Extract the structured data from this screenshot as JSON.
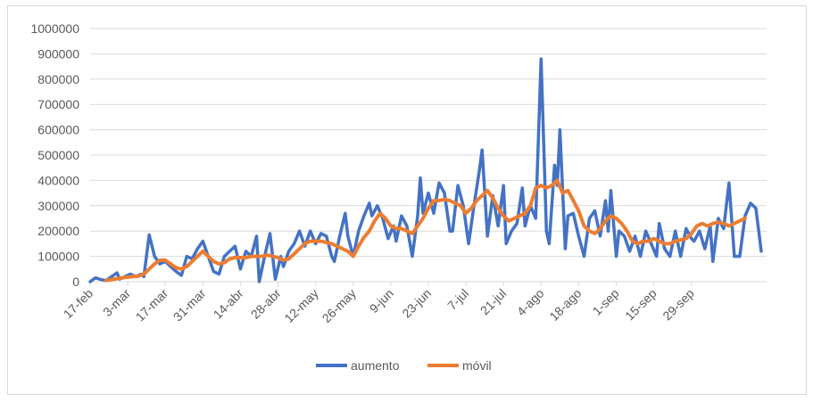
{
  "colors": {
    "aumento": "#4472C4",
    "movil": "#ED7D31",
    "grid": "#d9d9d9",
    "text": "#595959"
  },
  "chart_data": {
    "type": "line",
    "title": "",
    "xlabel": "",
    "ylabel": "",
    "ylim": [
      0,
      1000000
    ],
    "y_ticks": [
      "0",
      "100000",
      "200000",
      "300000",
      "400000",
      "500000",
      "600000",
      "700000",
      "800000",
      "900000",
      "1000000"
    ],
    "x_tick_labels": [
      "17-feb",
      "3-mar",
      "17-mar",
      "31-mar",
      "14-abr",
      "28-abr",
      "12-may",
      "26-may",
      "9-jun",
      "23-jun",
      "7-jul",
      "21-jul",
      "4-ago",
      "18-ago",
      "1-sep",
      "15-sep",
      "29-sep"
    ],
    "x_tick_days": [
      0,
      14,
      28,
      42,
      56,
      70,
      84,
      98,
      112,
      126,
      140,
      154,
      168,
      182,
      196,
      210,
      224
    ],
    "x_start": "17-feb",
    "grid": true,
    "legend_position": "bottom",
    "series": [
      {
        "name": "aumento",
        "points": [
          [
            0,
            0
          ],
          [
            2,
            15000
          ],
          [
            4,
            8000
          ],
          [
            6,
            5000
          ],
          [
            8,
            20000
          ],
          [
            10,
            35000
          ],
          [
            11,
            10000
          ],
          [
            13,
            20000
          ],
          [
            15,
            30000
          ],
          [
            17,
            20000
          ],
          [
            19,
            30000
          ],
          [
            20,
            20000
          ],
          [
            22,
            185000
          ],
          [
            24,
            100000
          ],
          [
            26,
            70000
          ],
          [
            28,
            80000
          ],
          [
            30,
            60000
          ],
          [
            32,
            40000
          ],
          [
            34,
            25000
          ],
          [
            36,
            100000
          ],
          [
            38,
            90000
          ],
          [
            40,
            130000
          ],
          [
            42,
            160000
          ],
          [
            44,
            100000
          ],
          [
            46,
            40000
          ],
          [
            48,
            30000
          ],
          [
            50,
            100000
          ],
          [
            52,
            120000
          ],
          [
            54,
            140000
          ],
          [
            56,
            50000
          ],
          [
            58,
            120000
          ],
          [
            60,
            100000
          ],
          [
            62,
            180000
          ],
          [
            63,
            0
          ],
          [
            65,
            100000
          ],
          [
            67,
            190000
          ],
          [
            69,
            10000
          ],
          [
            71,
            100000
          ],
          [
            72,
            60000
          ],
          [
            74,
            120000
          ],
          [
            76,
            150000
          ],
          [
            78,
            200000
          ],
          [
            80,
            140000
          ],
          [
            82,
            200000
          ],
          [
            84,
            150000
          ],
          [
            86,
            190000
          ],
          [
            88,
            180000
          ],
          [
            90,
            100000
          ],
          [
            91,
            80000
          ],
          [
            93,
            180000
          ],
          [
            95,
            270000
          ],
          [
            96,
            180000
          ],
          [
            98,
            100000
          ],
          [
            100,
            200000
          ],
          [
            102,
            260000
          ],
          [
            104,
            310000
          ],
          [
            105,
            260000
          ],
          [
            107,
            300000
          ],
          [
            109,
            250000
          ],
          [
            111,
            170000
          ],
          [
            113,
            220000
          ],
          [
            114,
            160000
          ],
          [
            116,
            260000
          ],
          [
            118,
            220000
          ],
          [
            120,
            100000
          ],
          [
            122,
            260000
          ],
          [
            123,
            410000
          ],
          [
            124,
            270000
          ],
          [
            126,
            350000
          ],
          [
            128,
            270000
          ],
          [
            130,
            390000
          ],
          [
            132,
            350000
          ],
          [
            134,
            200000
          ],
          [
            135,
            200000
          ],
          [
            137,
            380000
          ],
          [
            139,
            300000
          ],
          [
            141,
            150000
          ],
          [
            143,
            300000
          ],
          [
            145,
            440000
          ],
          [
            146,
            520000
          ],
          [
            148,
            180000
          ],
          [
            150,
            340000
          ],
          [
            152,
            220000
          ],
          [
            154,
            380000
          ],
          [
            155,
            150000
          ],
          [
            157,
            200000
          ],
          [
            159,
            230000
          ],
          [
            161,
            370000
          ],
          [
            162,
            220000
          ],
          [
            164,
            300000
          ],
          [
            166,
            250000
          ],
          [
            168,
            880000
          ],
          [
            170,
            200000
          ],
          [
            171,
            150000
          ],
          [
            173,
            460000
          ],
          [
            174,
            380000
          ],
          [
            175,
            600000
          ],
          [
            177,
            130000
          ],
          [
            178,
            260000
          ],
          [
            180,
            270000
          ],
          [
            182,
            180000
          ],
          [
            184,
            100000
          ],
          [
            186,
            250000
          ],
          [
            188,
            280000
          ],
          [
            190,
            180000
          ],
          [
            192,
            320000
          ],
          [
            193,
            200000
          ],
          [
            194,
            360000
          ],
          [
            196,
            100000
          ],
          [
            197,
            200000
          ],
          [
            199,
            180000
          ],
          [
            201,
            120000
          ],
          [
            203,
            180000
          ],
          [
            205,
            100000
          ],
          [
            207,
            200000
          ],
          [
            209,
            150000
          ],
          [
            211,
            100000
          ],
          [
            212,
            230000
          ],
          [
            214,
            130000
          ],
          [
            216,
            100000
          ],
          [
            218,
            200000
          ],
          [
            220,
            100000
          ],
          [
            222,
            210000
          ],
          [
            224,
            170000
          ],
          [
            225,
            160000
          ],
          [
            227,
            200000
          ],
          [
            229,
            130000
          ],
          [
            231,
            220000
          ],
          [
            232,
            80000
          ],
          [
            234,
            250000
          ],
          [
            236,
            210000
          ],
          [
            238,
            390000
          ],
          [
            240,
            100000
          ],
          [
            242,
            100000
          ],
          [
            244,
            260000
          ],
          [
            246,
            310000
          ],
          [
            248,
            290000
          ],
          [
            250,
            120000
          ]
        ]
      },
      {
        "name": "móvil",
        "points": [
          [
            6,
            5000
          ],
          [
            8,
            8000
          ],
          [
            10,
            12000
          ],
          [
            12,
            15000
          ],
          [
            14,
            18000
          ],
          [
            16,
            20000
          ],
          [
            18,
            22000
          ],
          [
            20,
            30000
          ],
          [
            22,
            50000
          ],
          [
            24,
            70000
          ],
          [
            26,
            85000
          ],
          [
            28,
            85000
          ],
          [
            30,
            70000
          ],
          [
            32,
            55000
          ],
          [
            34,
            50000
          ],
          [
            36,
            60000
          ],
          [
            38,
            80000
          ],
          [
            40,
            100000
          ],
          [
            42,
            120000
          ],
          [
            44,
            100000
          ],
          [
            46,
            80000
          ],
          [
            48,
            70000
          ],
          [
            50,
            75000
          ],
          [
            52,
            90000
          ],
          [
            54,
            95000
          ],
          [
            56,
            95000
          ],
          [
            58,
            95000
          ],
          [
            60,
            100000
          ],
          [
            62,
            100000
          ],
          [
            64,
            100000
          ],
          [
            66,
            105000
          ],
          [
            68,
            100000
          ],
          [
            70,
            95000
          ],
          [
            72,
            85000
          ],
          [
            74,
            90000
          ],
          [
            76,
            110000
          ],
          [
            78,
            130000
          ],
          [
            80,
            150000
          ],
          [
            82,
            160000
          ],
          [
            84,
            160000
          ],
          [
            86,
            160000
          ],
          [
            88,
            155000
          ],
          [
            90,
            150000
          ],
          [
            92,
            140000
          ],
          [
            94,
            130000
          ],
          [
            96,
            120000
          ],
          [
            98,
            100000
          ],
          [
            100,
            140000
          ],
          [
            102,
            175000
          ],
          [
            104,
            200000
          ],
          [
            106,
            240000
          ],
          [
            108,
            270000
          ],
          [
            110,
            250000
          ],
          [
            112,
            220000
          ],
          [
            114,
            210000
          ],
          [
            116,
            210000
          ],
          [
            118,
            200000
          ],
          [
            120,
            190000
          ],
          [
            122,
            220000
          ],
          [
            124,
            250000
          ],
          [
            126,
            290000
          ],
          [
            128,
            320000
          ],
          [
            130,
            320000
          ],
          [
            132,
            325000
          ],
          [
            134,
            320000
          ],
          [
            136,
            310000
          ],
          [
            138,
            300000
          ],
          [
            140,
            270000
          ],
          [
            142,
            290000
          ],
          [
            144,
            320000
          ],
          [
            146,
            340000
          ],
          [
            148,
            360000
          ],
          [
            150,
            330000
          ],
          [
            152,
            290000
          ],
          [
            154,
            260000
          ],
          [
            156,
            240000
          ],
          [
            158,
            250000
          ],
          [
            160,
            260000
          ],
          [
            162,
            270000
          ],
          [
            164,
            300000
          ],
          [
            166,
            370000
          ],
          [
            168,
            380000
          ],
          [
            170,
            370000
          ],
          [
            172,
            380000
          ],
          [
            174,
            400000
          ],
          [
            176,
            350000
          ],
          [
            178,
            360000
          ],
          [
            180,
            320000
          ],
          [
            182,
            280000
          ],
          [
            184,
            220000
          ],
          [
            186,
            200000
          ],
          [
            188,
            190000
          ],
          [
            190,
            210000
          ],
          [
            192,
            240000
          ],
          [
            194,
            260000
          ],
          [
            196,
            250000
          ],
          [
            198,
            230000
          ],
          [
            200,
            200000
          ],
          [
            202,
            160000
          ],
          [
            204,
            150000
          ],
          [
            206,
            160000
          ],
          [
            208,
            160000
          ],
          [
            210,
            170000
          ],
          [
            212,
            160000
          ],
          [
            214,
            150000
          ],
          [
            216,
            150000
          ],
          [
            218,
            160000
          ],
          [
            220,
            165000
          ],
          [
            222,
            170000
          ],
          [
            224,
            190000
          ],
          [
            226,
            220000
          ],
          [
            228,
            230000
          ],
          [
            230,
            220000
          ],
          [
            232,
            230000
          ],
          [
            234,
            235000
          ],
          [
            236,
            230000
          ],
          [
            238,
            220000
          ],
          [
            240,
            230000
          ],
          [
            242,
            240000
          ],
          [
            244,
            250000
          ]
        ]
      }
    ]
  },
  "legend": {
    "aumento": "aumento",
    "movil": "móvil"
  }
}
